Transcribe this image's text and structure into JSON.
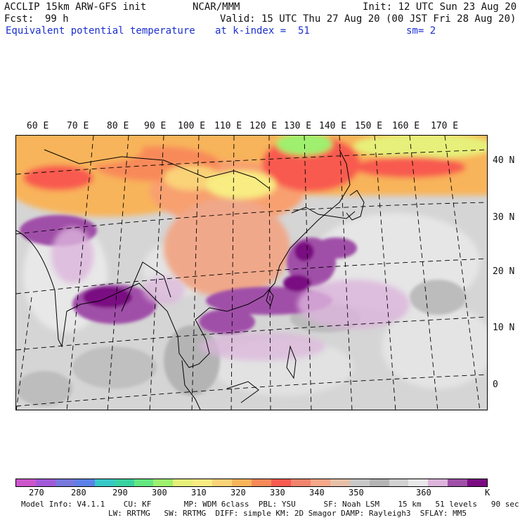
{
  "header": {
    "model": "ACCLIP 15km ARW-GFS init",
    "org": "NCAR/MMM",
    "init": "Init: 12 UTC Sun 23 Aug 20",
    "fcst_label": "Fcst:",
    "fcst_value": "99 h",
    "valid": "Valid: 15 UTC Thu 27 Aug 20 (00 JST Fri 28 Aug 20)",
    "field": "Equivalent potential temperature",
    "level": "at k-index =  51",
    "smoothing": "sm= 2"
  },
  "map": {
    "longitude_labels": [
      "60 E",
      "70 E",
      "80 E",
      "90 E",
      "100 E",
      "110 E",
      "120 E",
      "130 E",
      "140 E",
      "150 E",
      "160 E",
      "170 E"
    ],
    "latitude_labels": [
      "40 N",
      "30 N",
      "20 N",
      "10 N",
      "0"
    ]
  },
  "colorbar": {
    "colors": [
      "#cc55cc",
      "#a25ad8",
      "#7878dd",
      "#5c82e8",
      "#38c8c8",
      "#3ad2a0",
      "#64e682",
      "#9ef06e",
      "#e6f07a",
      "#f8ec82",
      "#fad278",
      "#f8b45a",
      "#f88a5a",
      "#f85a50",
      "#f0846e",
      "#f8a88a",
      "#e8c0a8",
      "#c8c8c8",
      "#b4b4b4",
      "#d2d2d2",
      "#e8e8e8",
      "#dcb4dc",
      "#a050a8",
      "#7a0c82"
    ],
    "tick_labels": [
      "270",
      "280",
      "290",
      "300",
      "310",
      "320",
      "330",
      "340",
      "350",
      "360"
    ],
    "unit": "K"
  },
  "footer": {
    "line1": "Model Info: V4.1.1    CU: KF       MP: WDM 6class  PBL: YSU      SF: Noah LSM    15 km   51 levels   90 sec",
    "line2": "LW: RRTMG   SW: RRTMG  DIFF: simple KM: 2D Smagor DAMP: Rayleigh3  SFLAY: MM5"
  }
}
